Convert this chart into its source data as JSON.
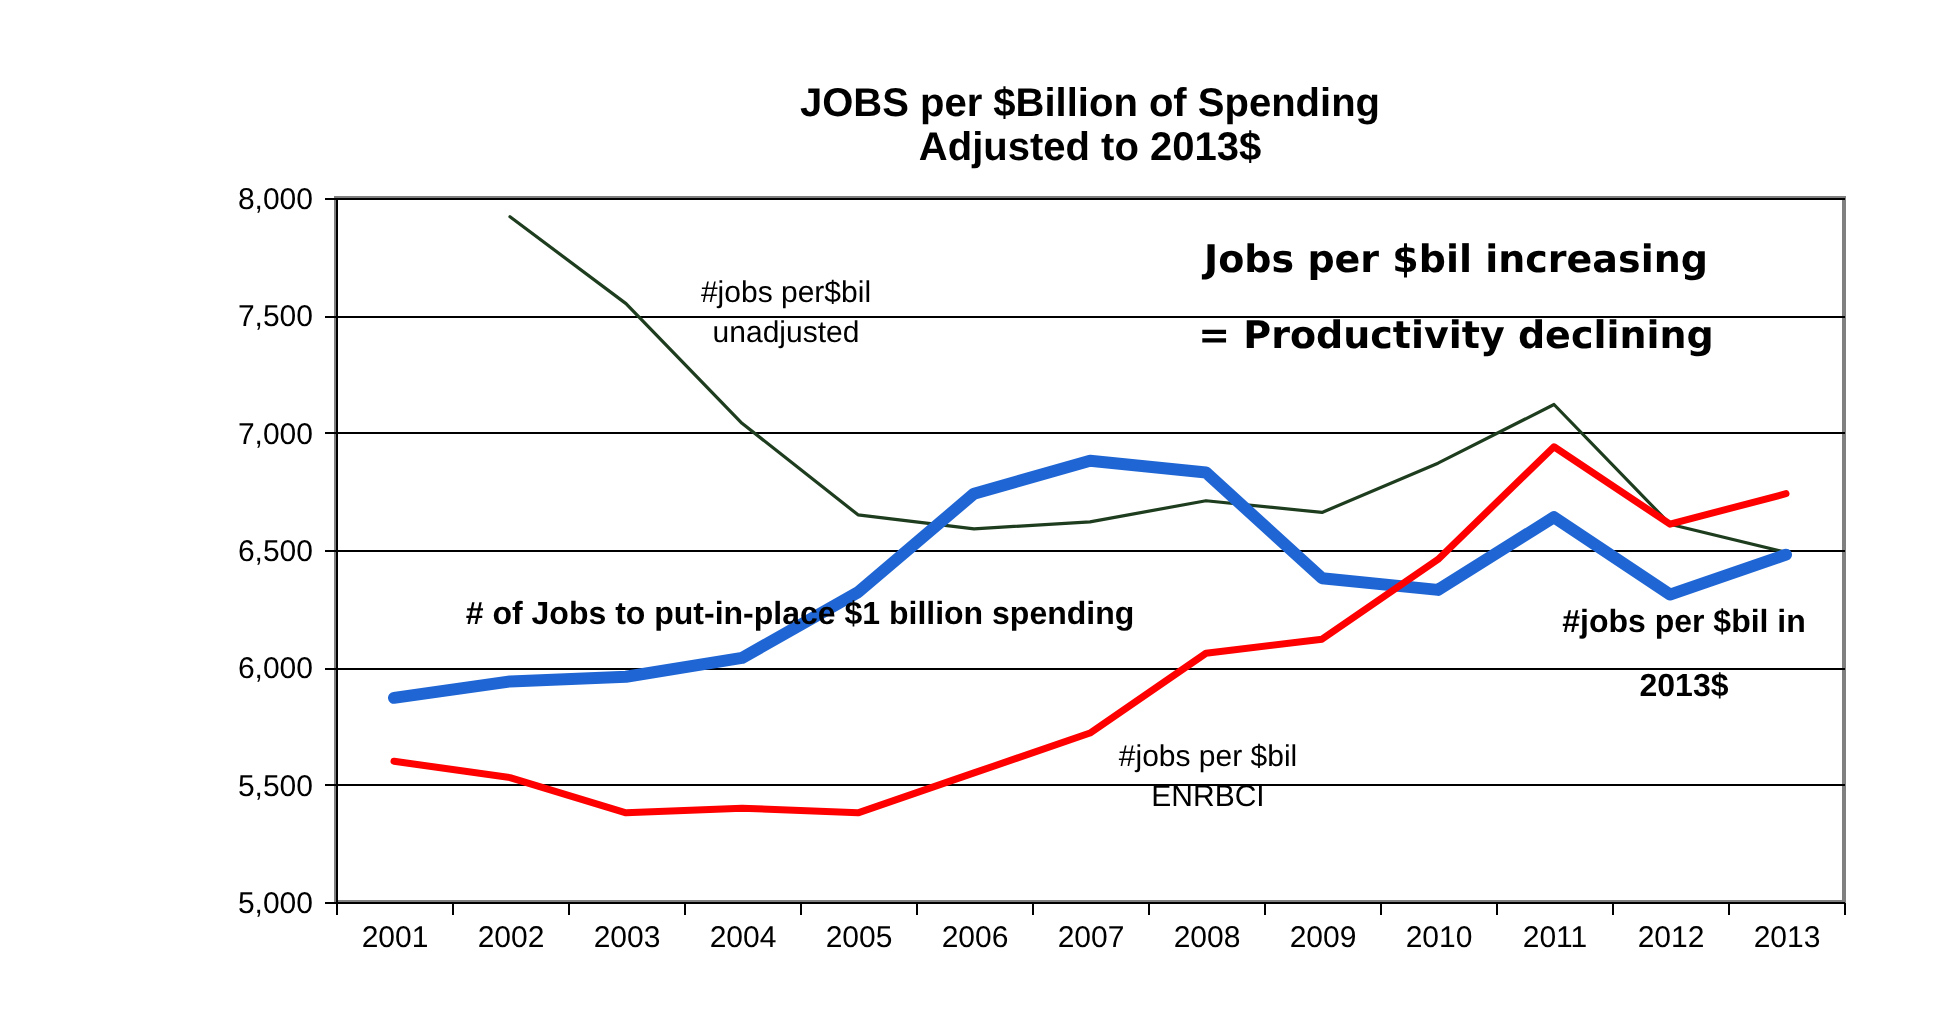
{
  "chart_data": {
    "type": "line",
    "title": "JOBS per $Billion of Spending",
    "subtitle": "Adjusted to 2013$",
    "categories": [
      "2001",
      "2002",
      "2003",
      "2004",
      "2005",
      "2006",
      "2007",
      "2008",
      "2009",
      "2010",
      "2011",
      "2012",
      "2013"
    ],
    "series": [
      {
        "color": "#1e3d1e",
        "values": [
          null,
          7920,
          7550,
          7040,
          6650,
          6590,
          6620,
          6710,
          6660,
          6870,
          7120,
          6610,
          6490
        ]
      },
      {
        "color": "#1f66d4",
        "values": [
          5870,
          5940,
          5960,
          6040,
          6320,
          6740,
          6880,
          6830,
          6380,
          6330,
          6640,
          6310,
          6480
        ]
      },
      {
        "color": "#ff0000",
        "values": [
          5600,
          5530,
          5380,
          5400,
          5380,
          5550,
          5720,
          6060,
          6120,
          6460,
          6940,
          6610,
          6740
        ]
      }
    ],
    "ylim": [
      5000,
      8000
    ],
    "yticks": [
      {
        "value": 5000,
        "label": "5,000"
      },
      {
        "value": 5500,
        "label": "5,500"
      },
      {
        "value": 6000,
        "label": "6,000"
      },
      {
        "value": 6500,
        "label": "6,500"
      },
      {
        "value": 7000,
        "label": "7,000"
      },
      {
        "value": 7500,
        "label": "7,500"
      },
      {
        "value": 8000,
        "label": "8,000"
      }
    ],
    "grid": "y",
    "legend": false,
    "marker": "none",
    "line_style": "solid",
    "annotations": [
      "#jobs per$bil\nunadjusted",
      "Jobs per $bil increasing\n= Productivity declining",
      "# of Jobs to put-in-place  $1 billion spending",
      "#jobs per $bil\nENRBCI",
      "#jobs per $bil in\n2013$"
    ]
  }
}
